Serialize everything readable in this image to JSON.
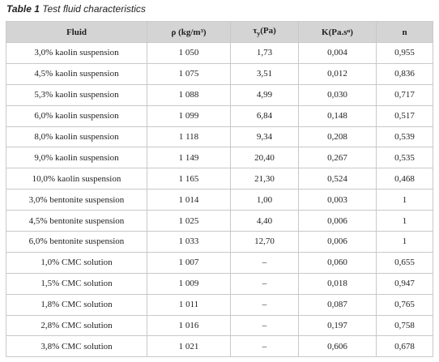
{
  "title": {
    "label": "Table 1",
    "caption": "Test fluid characteristics"
  },
  "table": {
    "headers": [
      "Fluid",
      "ρ (kg/m³)",
      {
        "main": "τ",
        "sub": "y",
        "rest": "(Pa)"
      },
      "K(Pa.sⁿ)",
      "n"
    ],
    "rows": [
      [
        "3,0% kaolin suspension",
        "1 050",
        "1,73",
        "0,004",
        "0,955"
      ],
      [
        "4,5% kaolin suspension",
        "1 075",
        "3,51",
        "0,012",
        "0,836"
      ],
      [
        "5,3% kaolin suspension",
        "1 088",
        "4,99",
        "0,030",
        "0,717"
      ],
      [
        "6,0% kaolin suspension",
        "1 099",
        "6,84",
        "0,148",
        "0,517"
      ],
      [
        "8,0% kaolin suspension",
        "1 118",
        "9,34",
        "0,208",
        "0,539"
      ],
      [
        "9,0% kaolin suspension",
        "1 149",
        "20,40",
        "0,267",
        "0,535"
      ],
      [
        "10,0% kaolin suspension",
        "1 165",
        "21,30",
        "0,524",
        "0,468"
      ],
      [
        "3,0% bentonite suspension",
        "1 014",
        "1,00",
        "0,003",
        "1"
      ],
      [
        "4,5% bentonite suspension",
        "1 025",
        "4,40",
        "0,006",
        "1"
      ],
      [
        "6,0% bentonite suspension",
        "1 033",
        "12,70",
        "0,006",
        "1"
      ],
      [
        "1,0% CMC solution",
        "1 007",
        "–",
        "0,060",
        "0,655"
      ],
      [
        "1,5% CMC solution",
        "1 009",
        "–",
        "0,018",
        "0,947"
      ],
      [
        "1,8% CMC solution",
        "1 011",
        "–",
        "0,087",
        "0,765"
      ],
      [
        "2,8% CMC solution",
        "1 016",
        "–",
        "0,197",
        "0,758"
      ],
      [
        "3,8% CMC solution",
        "1 021",
        "–",
        "0,606",
        "0,678"
      ]
    ]
  }
}
